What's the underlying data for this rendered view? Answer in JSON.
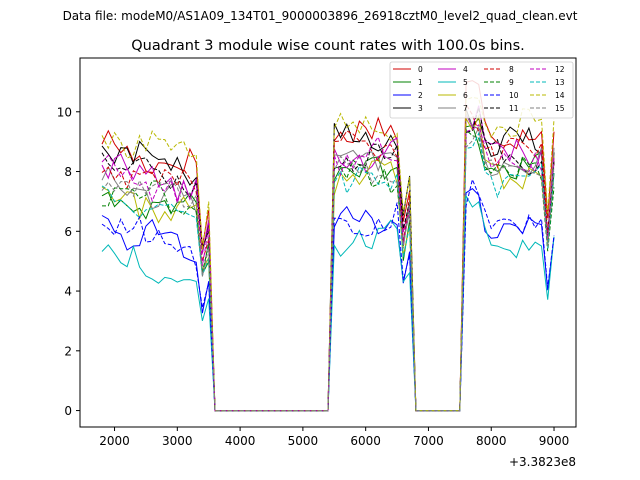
{
  "chart_data": {
    "type": "line",
    "suptitle": "Data file: modeM0/AS1A09_134T01_9000003896_26918cztM0_level2_quad_clean.evt",
    "title": "Quadrant 3 module wise count rates with 100.0s bins.",
    "xlabel": "",
    "ylabel": "",
    "x_offset_label": "+3.3823e8",
    "xlim": [
      1450,
      9350
    ],
    "ylim": [
      -0.55,
      11.8
    ],
    "xticks": [
      2000,
      3000,
      4000,
      5000,
      6000,
      7000,
      8000,
      9000
    ],
    "yticks": [
      0,
      2,
      4,
      6,
      8,
      10
    ],
    "legend": {
      "location": "top-right",
      "columns": 4
    },
    "segments": [
      {
        "start": 1800,
        "end": 3500
      },
      {
        "start": 5500,
        "end": 6700
      },
      {
        "start": 7600,
        "end": 9000
      }
    ],
    "series": [
      {
        "name": "0",
        "color": "#d00000",
        "dash": "solid",
        "level": [
          8.9,
          9.3,
          9.4
        ]
      },
      {
        "name": "1",
        "color": "#008000",
        "dash": "solid",
        "level": [
          7.4,
          8.0,
          8.0
        ]
      },
      {
        "name": "2",
        "color": "#0000ff",
        "dash": "solid",
        "level": [
          6.2,
          6.4,
          6.0
        ]
      },
      {
        "name": "3",
        "color": "#000000",
        "dash": "solid",
        "level": [
          8.8,
          9.1,
          8.9
        ]
      },
      {
        "name": "4",
        "color": "#c000c0",
        "dash": "solid",
        "level": [
          8.2,
          8.6,
          8.6
        ]
      },
      {
        "name": "5",
        "color": "#00b8b8",
        "dash": "solid",
        "level": [
          5.2,
          5.8,
          5.6
        ]
      },
      {
        "name": "6",
        "color": "#b8b800",
        "dash": "solid",
        "level": [
          7.3,
          7.8,
          8.0
        ]
      },
      {
        "name": "7",
        "color": "#808080",
        "dash": "solid",
        "level": [
          7.7,
          8.3,
          8.2
        ]
      },
      {
        "name": "8",
        "color": "#d00000",
        "dash": "dashed",
        "level": [
          8.3,
          8.7,
          8.7
        ]
      },
      {
        "name": "9",
        "color": "#008000",
        "dash": "dashed",
        "level": [
          7.5,
          7.9,
          8.0
        ]
      },
      {
        "name": "10",
        "color": "#0000ff",
        "dash": "dashed",
        "level": [
          6.1,
          6.5,
          6.3
        ]
      },
      {
        "name": "11",
        "color": "#000000",
        "dash": "dashed",
        "level": [
          8.4,
          8.6,
          8.5
        ]
      },
      {
        "name": "12",
        "color": "#c000c0",
        "dash": "dashed",
        "level": [
          8.0,
          8.5,
          8.3
        ]
      },
      {
        "name": "13",
        "color": "#00b8b8",
        "dash": "dashed",
        "level": [
          7.3,
          7.7,
          7.7
        ]
      },
      {
        "name": "14",
        "color": "#b8b800",
        "dash": "dashed",
        "level": [
          9.3,
          9.5,
          9.5
        ]
      },
      {
        "name": "15",
        "color": "#808080",
        "dash": "dashed",
        "level": [
          7.8,
          8.1,
          8.1
        ]
      }
    ]
  }
}
